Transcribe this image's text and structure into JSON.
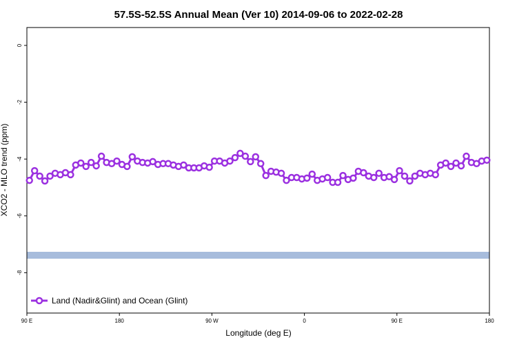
{
  "chart_data": {
    "type": "line",
    "title": "57.5S-52.5S Annual Mean (Ver 10)   2014-09-06 to 2022-02-28",
    "x_label": "Longitude (deg E)",
    "y_label": "XCO2 - MLO trend (ppm)",
    "xlim": [
      90,
      540
    ],
    "ylim": [
      -9.42,
      0.63
    ],
    "xticks": [
      {
        "value": 90,
        "label": "90 E"
      },
      180,
      {
        "value": 270,
        "label": "90 W"
      },
      {
        "value": 360,
        "label": "0"
      },
      {
        "value": 450,
        "label": "90 E"
      },
      {
        "value": 540,
        "label": "180"
      }
    ],
    "yticks": [
      0,
      -2,
      -4,
      -6,
      -8
    ],
    "legend": "bottom-left",
    "x": [
      92.5,
      97.5,
      102.5,
      107.5,
      112.5,
      117.5,
      122.5,
      127.5,
      132.5,
      137.5,
      142.5,
      147.5,
      152.5,
      157.5,
      162.5,
      167.5,
      172.5,
      177.5,
      182.5,
      187.5,
      192.5,
      197.5,
      202.5,
      207.5,
      212.5,
      217.5,
      222.5,
      227.5,
      232.5,
      237.5,
      242.5,
      247.5,
      252.5,
      257.5,
      262.5,
      267.5,
      272.5,
      277.5,
      282.5,
      287.5,
      292.5,
      297.5,
      302.5,
      307.5,
      312.5,
      317.5,
      322.5,
      327.5,
      332.5,
      337.5,
      342.5,
      347.5,
      352.5,
      357.5,
      362.5,
      367.5,
      372.5,
      377.5,
      382.5,
      387.5,
      392.5,
      397.5,
      402.5,
      407.5,
      412.5,
      417.5,
      422.5,
      427.5,
      432.5,
      437.5,
      442.5,
      447.5,
      452.5,
      457.5,
      462.5,
      467.5,
      472.5,
      477.5,
      482.5,
      487.5,
      492.5,
      497.5,
      502.5,
      507.5,
      512.5,
      517.5,
      522.5,
      527.5,
      532.5,
      537.5
    ],
    "series": [
      {
        "name": "Land (Nadir&Glint) and Ocean (Glint)",
        "color": "#9b30e0",
        "values": [
          -4.75,
          -4.41,
          -4.6,
          -4.77,
          -4.6,
          -4.5,
          -4.55,
          -4.48,
          -4.55,
          -4.21,
          -4.14,
          -4.26,
          -4.12,
          -4.24,
          -3.9,
          -4.12,
          -4.16,
          -4.07,
          -4.19,
          -4.26,
          -3.92,
          -4.07,
          -4.12,
          -4.14,
          -4.09,
          -4.19,
          -4.16,
          -4.16,
          -4.21,
          -4.26,
          -4.21,
          -4.31,
          -4.31,
          -4.31,
          -4.24,
          -4.29,
          -4.07,
          -4.07,
          -4.14,
          -4.07,
          -3.95,
          -3.8,
          -3.9,
          -4.09,
          -3.92,
          -4.16,
          -4.58,
          -4.43,
          -4.46,
          -4.5,
          -4.75,
          -4.65,
          -4.65,
          -4.7,
          -4.67,
          -4.53,
          -4.75,
          -4.7,
          -4.65,
          -4.82,
          -4.82,
          -4.58,
          -4.72,
          -4.67,
          -4.43,
          -4.48,
          -4.6,
          -4.65,
          -4.5,
          -4.65,
          -4.62,
          -4.72,
          -4.41,
          -4.6,
          -4.77,
          -4.6,
          -4.5,
          -4.55,
          -4.5,
          -4.55,
          -4.21,
          -4.14,
          -4.26,
          -4.14,
          -4.24,
          -3.9,
          -4.12,
          -4.16,
          -4.07,
          -4.04
        ]
      }
    ]
  }
}
